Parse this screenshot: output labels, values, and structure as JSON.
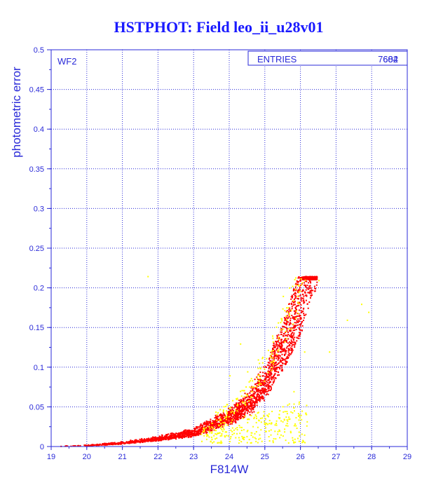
{
  "title": "HSTPHOT: Field leo_ii_u28v01",
  "chart_data": {
    "type": "scatter",
    "title": "HSTPHOT: Field leo_ii_u28v01",
    "xlabel": "F814W",
    "ylabel": "photometric error",
    "xlim": [
      19,
      29
    ],
    "ylim": [
      0,
      0.5
    ],
    "x_ticks": [
      "19",
      "20",
      "21",
      "22",
      "23",
      "24",
      "25",
      "26",
      "27",
      "28",
      "29"
    ],
    "y_ticks": [
      "0",
      "0.05",
      "0.1",
      "0.15",
      "0.2",
      "0.25",
      "0.3",
      "0.35",
      "0.4",
      "0.45",
      "0.5"
    ],
    "grid": true,
    "panel_label": "WF2",
    "stats": {
      "label": "ENTRIES",
      "value": "7684",
      "overlay": "602"
    },
    "colors": {
      "axes": "#2a2ad8",
      "grid": "#2a2ad8",
      "series_main": "#ff0000",
      "series_secondary": "#ffff00",
      "title": "#1a1aff"
    },
    "series": [
      {
        "color": "#ff0000",
        "description_curve": [
          [
            19.1,
            0.001
          ],
          [
            20.0,
            0.002
          ],
          [
            21.0,
            0.005
          ],
          [
            22.0,
            0.01
          ],
          [
            23.0,
            0.017
          ],
          [
            24.0,
            0.035
          ],
          [
            24.5,
            0.05
          ],
          [
            25.0,
            0.075
          ],
          [
            25.5,
            0.11
          ],
          [
            26.0,
            0.16
          ],
          [
            26.3,
            0.215
          ]
        ],
        "max_y": 0.215,
        "max_x": 26.45
      },
      {
        "color": "#ffff00",
        "points": [
          [
            21.7,
            0.215
          ],
          [
            23.9,
            0.035
          ],
          [
            24.2,
            0.06
          ],
          [
            24.5,
            0.095
          ],
          [
            24.8,
            0.11
          ],
          [
            25.0,
            0.02
          ],
          [
            25.3,
            0.03
          ],
          [
            25.6,
            0.045
          ],
          [
            25.8,
            0.07
          ],
          [
            26.1,
            0.12
          ],
          [
            26.5,
            0.21
          ],
          [
            26.8,
            0.12
          ],
          [
            27.3,
            0.16
          ],
          [
            27.7,
            0.18
          ],
          [
            27.9,
            0.17
          ],
          [
            24.0,
            0.09
          ],
          [
            24.3,
            0.13
          ],
          [
            25.2,
            0.14
          ],
          [
            25.5,
            0.19
          ],
          [
            23.5,
            0.03
          ],
          [
            23.8,
            0.02
          ],
          [
            24.6,
            0.015
          ],
          [
            25.4,
            0.012
          ],
          [
            26.0,
            0.04
          ]
        ]
      }
    ]
  }
}
